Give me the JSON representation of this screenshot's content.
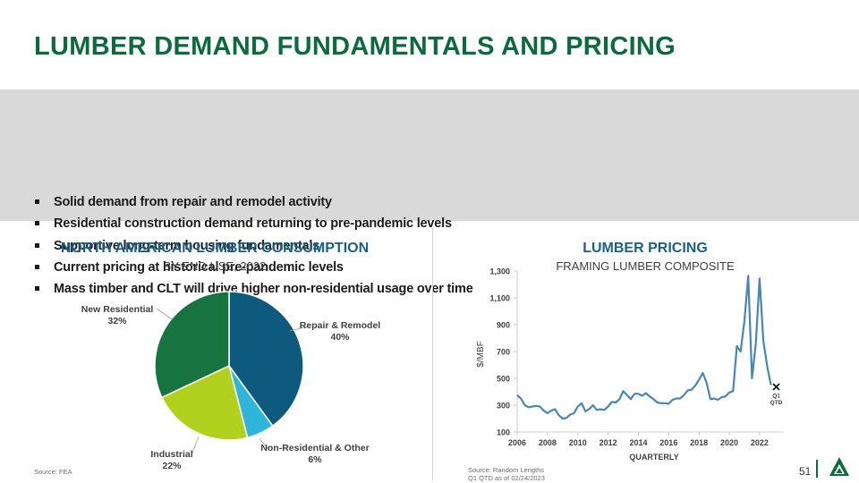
{
  "title": "LUMBER DEMAND FUNDAMENTALS AND PRICING",
  "bullets": [
    "Solid demand from repair and remodel activity",
    "Residential construction demand returning to pre-pandemic levels",
    "Supportive long-term housing fundamentals",
    "Current pricing at historical pre-pandemic levels",
    "Mass timber and CLT will drive higher non-residential usage over time"
  ],
  "colors": {
    "brand_green": "#0c6a3d",
    "chart_title_blue": "#1b5e83",
    "line_blue": "#4a86b4"
  },
  "page_number": "51",
  "logo_icon": "tree-logo-icon",
  "chart_data": [
    {
      "type": "pie",
      "title": "NORTH AMERICAN LUMBER CONSUMPTION",
      "subtitle": "BY END USE, 2022",
      "source": "Source: FEA",
      "slices": [
        {
          "label": "Repair & Remodel",
          "value": 40,
          "value_label": "40%",
          "color": "#0e5a7e"
        },
        {
          "label": "Non-Residential & Other",
          "value": 6,
          "value_label": "6%",
          "color": "#30b5d8"
        },
        {
          "label": "Industrial",
          "value": 22,
          "value_label": "22%",
          "color": "#b2d11e"
        },
        {
          "label": "New Residential",
          "value": 32,
          "value_label": "32%",
          "color": "#177340"
        }
      ]
    },
    {
      "type": "line",
      "title": "LUMBER PRICING",
      "subtitle": "FRAMING LUMBER COMPOSITE",
      "ylabel": "$/MBF",
      "xlabel": "QUARTERLY",
      "ylim": [
        100,
        1300
      ],
      "yticks": [
        "100",
        "300",
        "500",
        "700",
        "900",
        "1,100",
        "1,300"
      ],
      "xlim": [
        2006,
        2023.6
      ],
      "xticks": [
        "2006",
        "2008",
        "2010",
        "2012",
        "2014",
        "2016",
        "2018",
        "2020",
        "2022"
      ],
      "source_lines": [
        "Source: Random Lengths",
        "Q1 QTD as of 02/24/2023"
      ],
      "marker": {
        "x": 2023.1,
        "y": 437,
        "label_lines": [
          "Q1",
          "QTD"
        ]
      },
      "series": [
        {
          "color": "#4a86b4",
          "points": [
            [
              2006.0,
              375
            ],
            [
              2006.25,
              350
            ],
            [
              2006.5,
              300
            ],
            [
              2006.75,
              285
            ],
            [
              2007.0,
              290
            ],
            [
              2007.25,
              295
            ],
            [
              2007.5,
              290
            ],
            [
              2007.75,
              260
            ],
            [
              2008.0,
              240
            ],
            [
              2008.25,
              260
            ],
            [
              2008.5,
              270
            ],
            [
              2008.75,
              225
            ],
            [
              2009.0,
              200
            ],
            [
              2009.25,
              205
            ],
            [
              2009.5,
              230
            ],
            [
              2009.75,
              240
            ],
            [
              2010.0,
              290
            ],
            [
              2010.25,
              315
            ],
            [
              2010.5,
              255
            ],
            [
              2010.75,
              270
            ],
            [
              2011.0,
              300
            ],
            [
              2011.25,
              265
            ],
            [
              2011.5,
              270
            ],
            [
              2011.75,
              265
            ],
            [
              2012.0,
              290
            ],
            [
              2012.25,
              325
            ],
            [
              2012.5,
              320
            ],
            [
              2012.75,
              345
            ],
            [
              2013.0,
              405
            ],
            [
              2013.25,
              375
            ],
            [
              2013.5,
              345
            ],
            [
              2013.75,
              385
            ],
            [
              2014.0,
              385
            ],
            [
              2014.25,
              370
            ],
            [
              2014.5,
              390
            ],
            [
              2014.75,
              365
            ],
            [
              2015.0,
              345
            ],
            [
              2015.25,
              320
            ],
            [
              2015.5,
              315
            ],
            [
              2015.75,
              315
            ],
            [
              2016.0,
              310
            ],
            [
              2016.25,
              340
            ],
            [
              2016.5,
              350
            ],
            [
              2016.75,
              350
            ],
            [
              2017.0,
              375
            ],
            [
              2017.25,
              410
            ],
            [
              2017.5,
              415
            ],
            [
              2017.75,
              445
            ],
            [
              2018.0,
              490
            ],
            [
              2018.25,
              540
            ],
            [
              2018.5,
              470
            ],
            [
              2018.75,
              345
            ],
            [
              2019.0,
              350
            ],
            [
              2019.25,
              340
            ],
            [
              2019.5,
              360
            ],
            [
              2019.75,
              365
            ],
            [
              2020.0,
              395
            ],
            [
              2020.25,
              405
            ],
            [
              2020.5,
              740
            ],
            [
              2020.75,
              700
            ],
            [
              2021.0,
              930
            ],
            [
              2021.25,
              1265
            ],
            [
              2021.5,
              500
            ],
            [
              2021.75,
              760
            ],
            [
              2022.0,
              1245
            ],
            [
              2022.25,
              780
            ],
            [
              2022.5,
              590
            ],
            [
              2022.75,
              450
            ]
          ]
        }
      ]
    }
  ]
}
